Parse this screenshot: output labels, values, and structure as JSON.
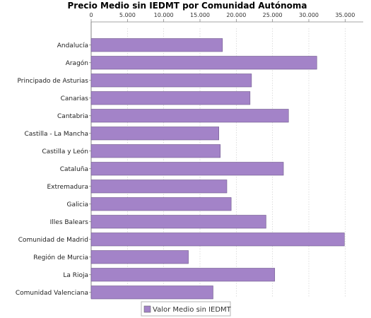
{
  "chart_data": {
    "type": "bar",
    "orientation": "horizontal",
    "title": "Precio Medio sin IEDMT por Comunidad Autónoma",
    "x_axis_position": "top",
    "xlim": [
      0,
      37500
    ],
    "x_ticks": [
      0,
      5000,
      10000,
      15000,
      20000,
      25000,
      30000,
      35000
    ],
    "x_tick_labels": [
      "0",
      "5.000",
      "10.000",
      "15.000",
      "20.000",
      "25.000",
      "30.000",
      "35.000"
    ],
    "grid": true,
    "legend_position": "bottom",
    "categories": [
      "Andalucía",
      "Aragón",
      "Principado de Asturias",
      "Canarias",
      "Cantabria",
      "Castilla - La Mancha",
      "Castilla y León",
      "Cataluña",
      "Extremadura",
      "Galicia",
      "Illes Balears",
      "Comunidad de Madrid",
      "Región de Murcia",
      "La Rioja",
      "Comunidad Valenciana"
    ],
    "series": [
      {
        "name": "Valor Medio sin IEDMT",
        "color": "#a383c8",
        "values": [
          18100,
          31100,
          22100,
          21900,
          27200,
          17600,
          17800,
          26500,
          18700,
          19300,
          24100,
          34900,
          13400,
          25300,
          16800
        ]
      }
    ]
  }
}
